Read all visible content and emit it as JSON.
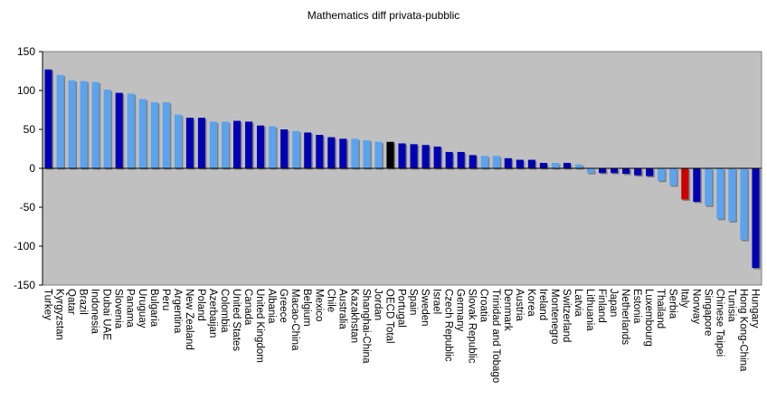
{
  "chart_data": {
    "type": "bar",
    "title": "Mathematics diff privata-pubblic",
    "xlabel": "",
    "ylabel": "",
    "ylim": [
      -150,
      150
    ],
    "yticks": [
      150,
      100,
      50,
      0,
      -50,
      -100,
      -150
    ],
    "grid": false,
    "legend": "none",
    "colors": {
      "plot_bg": "#c0c0c0",
      "light": "#5ba3ee",
      "dark": "#0000b4",
      "oecd": "#000000",
      "italy": "#cc0000",
      "shadow": "#808080"
    },
    "categories": [
      "Turkey",
      "Kyrgyzstan",
      "Qatar",
      "Brazil",
      "Indonesia",
      "Dubai UAE",
      "Slovenia",
      "Panama",
      "Uruguay",
      "Bulgaria",
      "Peru",
      "Argentina",
      "New Zealand",
      "Poland",
      "Azerbaijan",
      "Colombia",
      "United States",
      "Canada",
      "United Kingdom",
      "Albania",
      "Greece",
      "Macao-China",
      "Belgium",
      "Mexico",
      "Chile",
      "Australia",
      "Kazakhstan",
      "Shanghai-China",
      "Jordan",
      "OECD Total",
      "Portugal",
      "Spain",
      "Sweden",
      "Israel",
      "Czech Republic",
      "Germany",
      "Slovak Republic",
      "Croatia",
      "Trinidad and Tobago",
      "Denmark",
      "Austria",
      "Korea",
      "Ireland",
      "Montenegro",
      "Switzerland",
      "Latvia",
      "Lithuania",
      "Finland",
      "Japan",
      "Netherlands",
      "Estonia",
      "Luxembourg",
      "Thailand",
      "Serbia",
      "Italy",
      "Norway",
      "Singapore",
      "Chinese Taipei",
      "Tunisia",
      "Hong Kong-China",
      "Hungary"
    ],
    "values": [
      127,
      120,
      113,
      112,
      111,
      101,
      97,
      96,
      89,
      85,
      85,
      69,
      65,
      65,
      60,
      60,
      61,
      60,
      55,
      54,
      50,
      48,
      46,
      43,
      40,
      38,
      38,
      36,
      34,
      34,
      32,
      31,
      30,
      28,
      21,
      21,
      17,
      16,
      16,
      13,
      11,
      11,
      7,
      7,
      7,
      5,
      -6,
      -6,
      -6,
      -7,
      -9,
      -10,
      -16,
      -22,
      -40,
      -43,
      -48,
      -65,
      -68,
      -92,
      -128
    ],
    "bar_styles": [
      "dark",
      "light",
      "light",
      "light",
      "light",
      "light",
      "dark",
      "light",
      "light",
      "light",
      "light",
      "light",
      "dark",
      "dark",
      "light",
      "light",
      "dark",
      "dark",
      "dark",
      "light",
      "dark",
      "light",
      "dark",
      "dark",
      "dark",
      "dark",
      "light",
      "light",
      "light",
      "oecd",
      "dark",
      "dark",
      "dark",
      "dark",
      "dark",
      "dark",
      "dark",
      "light",
      "light",
      "dark",
      "dark",
      "dark",
      "dark",
      "light",
      "dark",
      "light",
      "light",
      "dark",
      "dark",
      "dark",
      "dark",
      "dark",
      "light",
      "light",
      "italy",
      "dark",
      "light",
      "light",
      "light",
      "light",
      "dark"
    ]
  }
}
